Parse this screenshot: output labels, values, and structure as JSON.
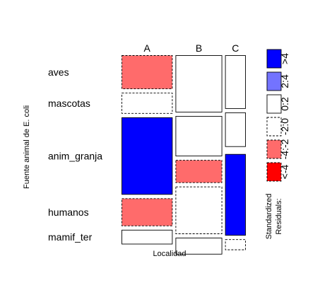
{
  "chart_data": {
    "type": "mosaic",
    "title": "",
    "xlabel": "Localidad",
    "ylabel": "Fuente animal de E. coli",
    "x_categories": [
      "A",
      "B",
      "C"
    ],
    "x_proportions": [
      0.431,
      0.394,
      0.175
    ],
    "y_categories": [
      "aves",
      "mascotas",
      "anim_granja",
      "humanos",
      "mamif_ter"
    ],
    "conditional_proportions": {
      "A": [
        0.202,
        0.125,
        0.46,
        0.166,
        0.087
      ],
      "B": [
        0.34,
        0.24,
        0.137,
        0.283,
        0.1
      ],
      "C": [
        0.319,
        0.205,
        1e-05,
        0.485,
        0.065
      ]
    },
    "residual_class": {
      "A": [
        "neg_2_4",
        "neu_0_2_neg",
        "pos_gt4",
        "neg_2_4",
        "neu_0_2_pos"
      ],
      "B": [
        "neu_0_2_pos",
        "neu_0_2_pos",
        "neg_2_4",
        "neu_0_2_neg",
        "neu_0_2_pos"
      ],
      "C": [
        "neu_0_2_pos",
        "neu_0_2_pos",
        "neu_0_2_neg",
        "pos_gt4",
        "neu_0_2_neg"
      ]
    },
    "legend": {
      "title_lines": [
        "Standardized",
        "Residuals:"
      ],
      "entries": [
        {
          "key": "pos_gt4",
          "label": ">4",
          "color": "#0000ff",
          "dashed": false
        },
        {
          "key": "pos_2_4",
          "label": "2:4",
          "color": "#7373ff",
          "dashed": false
        },
        {
          "key": "neu_0_2_pos",
          "label": "0:2",
          "color": "#ffffff",
          "dashed": false
        },
        {
          "key": "neu_0_2_neg",
          "label": "-2:0",
          "color": "#ffffff",
          "dashed": true
        },
        {
          "key": "neg_2_4",
          "label": "-4:-2",
          "color": "#ff6b6b",
          "dashed": true
        },
        {
          "key": "neg_lt4",
          "label": "<-4",
          "color": "#ff0000",
          "dashed": true
        }
      ]
    }
  }
}
